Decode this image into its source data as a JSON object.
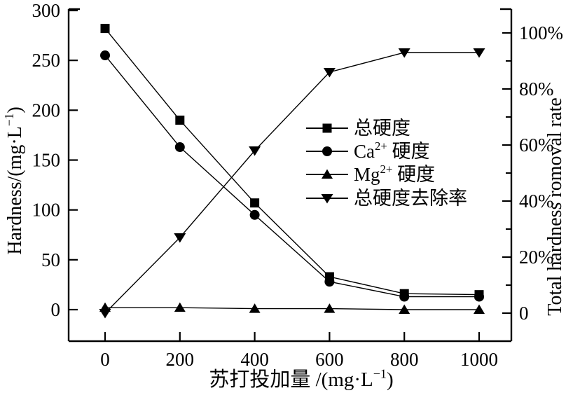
{
  "chart_data": {
    "type": "line",
    "title": "",
    "x": [
      0,
      200,
      400,
      600,
      800,
      1000
    ],
    "x_tick_labels": [
      "0",
      "200",
      "400",
      "600",
      "800",
      "1000"
    ],
    "xlabel": "苏打投加量 /(mg·L^{−1})",
    "axes": {
      "left": {
        "label": "Hardness/(mg·L^{−1})",
        "range": [
          0,
          300
        ],
        "ticks": [
          0,
          50,
          100,
          150,
          200,
          250,
          300
        ],
        "tick_labels": [
          "0",
          "50",
          "100",
          "150",
          "200",
          "250",
          "300"
        ]
      },
      "right": {
        "label": "Total hardness romoval rate",
        "range": [
          0,
          100
        ],
        "ticks": [
          0,
          20,
          40,
          60,
          80,
          100
        ],
        "tick_labels": [
          "0",
          "20%",
          "40%",
          "60%",
          "80%",
          "100%"
        ],
        "minor_ticks": [
          10,
          30,
          50,
          70,
          90
        ]
      }
    },
    "series": [
      {
        "id": "total-hardness",
        "name": "总硬度",
        "marker": "square",
        "axis": "left",
        "values": [
          282,
          190,
          107,
          33,
          16,
          15
        ]
      },
      {
        "id": "ca-hardness",
        "name": "Ca^{2+} 硬度",
        "marker": "circle",
        "axis": "left",
        "values": [
          255,
          163,
          95,
          28,
          13,
          13
        ]
      },
      {
        "id": "mg-hardness",
        "name": "Mg^{2+} 硬度",
        "marker": "triangle-up",
        "axis": "left",
        "values": [
          2,
          2,
          1,
          1,
          0,
          0
        ]
      },
      {
        "id": "removal-rate",
        "name": "总硬度去除率",
        "marker": "triangle-down",
        "axis": "right",
        "values": [
          0,
          27,
          58,
          86,
          93,
          93
        ]
      }
    ],
    "legend": {
      "position": "inside-right-middle",
      "entries": [
        "总硬度",
        "Ca^{2+} 硬度",
        "Mg^{2+} 硬度",
        "总硬度去除率"
      ]
    },
    "colors": {
      "foreground": "#000000",
      "background": "#ffffff"
    },
    "grid": false
  }
}
